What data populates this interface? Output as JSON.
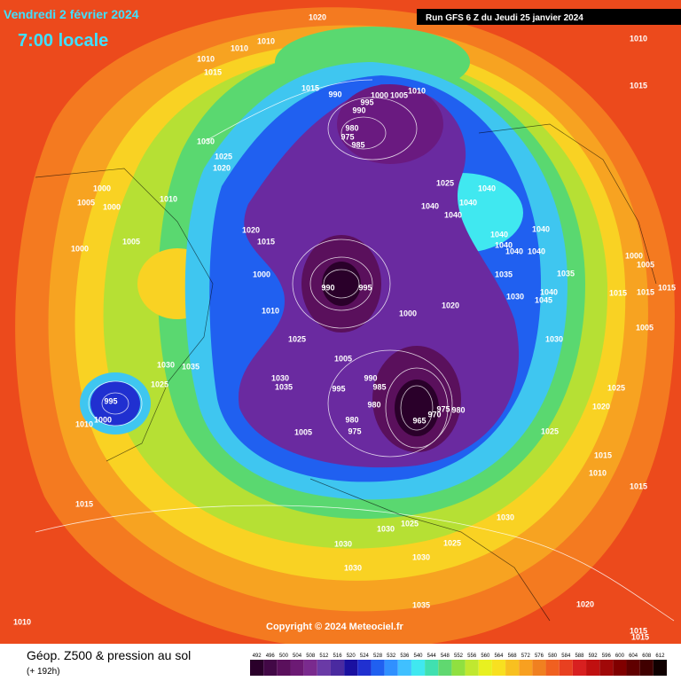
{
  "header": {
    "title": "Vendredi 2 février 2024",
    "subtitle": "7:00 locale",
    "run": "Run GFS 6 Z du Jeudi 25 janvier 2024"
  },
  "copyright": "Copyright © 2024 Meteociel.fr",
  "footer": {
    "title": "Géop. Z500 & pression au sol",
    "lead": "(+ 192h)"
  },
  "scale": {
    "labels": [
      492,
      496,
      500,
      504,
      508,
      512,
      516,
      520,
      524,
      528,
      532,
      536,
      540,
      544,
      548,
      552,
      556,
      560,
      564,
      568,
      572,
      576,
      580,
      584,
      588,
      592,
      596,
      600,
      604,
      608,
      612
    ],
    "colors": [
      "#2a002a",
      "#420846",
      "#5a105c",
      "#6c1a74",
      "#7a2a8e",
      "#6a3aa6",
      "#4a2aa0",
      "#1a10a0",
      "#2030d0",
      "#2060f0",
      "#3090ff",
      "#40c0ff",
      "#40e8f0",
      "#40e0b0",
      "#60d870",
      "#90e040",
      "#c0e830",
      "#e8f020",
      "#f8e020",
      "#f8c020",
      "#f8a020",
      "#f08020",
      "#f06020",
      "#e84020",
      "#d82020",
      "#c01010",
      "#a00808",
      "#800000",
      "#600000",
      "#400000",
      "#100000"
    ]
  },
  "isobar_labels": [
    1020,
    1010,
    1010,
    1010,
    1015,
    1015,
    990,
    995,
    990,
    1000,
    1005,
    1010,
    980,
    975,
    985,
    1030,
    1025,
    1020,
    1025,
    1040,
    1040,
    1040,
    1040,
    1040,
    1040,
    1040,
    1040,
    1040,
    1035,
    1035,
    1030,
    1040,
    1045,
    990,
    995,
    1000,
    1020,
    1000,
    1015,
    1020,
    1000,
    1005,
    1000,
    1010,
    1005,
    1000,
    1010,
    1025,
    1005,
    990,
    985,
    995,
    980,
    980,
    975,
    1005,
    965,
    970,
    975,
    980,
    1030,
    1035,
    1030,
    1035,
    1025,
    995,
    1000,
    1010,
    1030,
    1030,
    1025,
    1030,
    1030,
    1025,
    1030,
    1035,
    1015,
    1010,
    1020,
    1010,
    1015,
    1000,
    1005,
    1015,
    1015,
    1015,
    1005,
    1025,
    1020,
    1025,
    1015,
    1010,
    1015,
    1015,
    1015,
    1030
  ]
}
